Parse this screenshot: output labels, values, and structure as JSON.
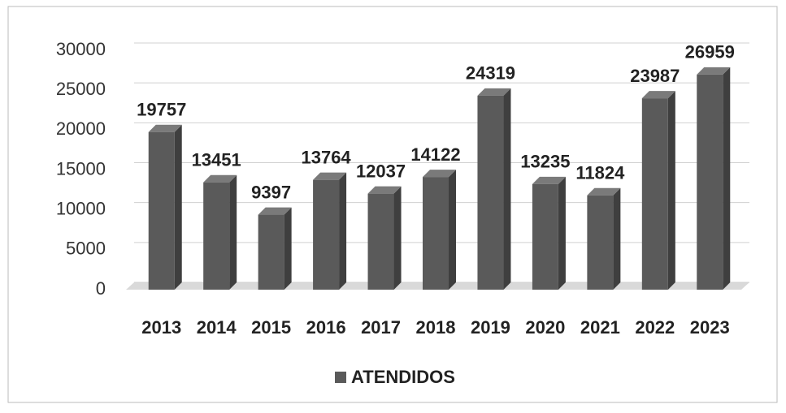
{
  "chart_data": {
    "type": "bar",
    "categories": [
      "2013",
      "2014",
      "2015",
      "2016",
      "2017",
      "2018",
      "2019",
      "2020",
      "2021",
      "2022",
      "2023"
    ],
    "series": [
      {
        "name": "ATENDIDOS",
        "color": "#5a5a5a",
        "values": [
          19757,
          13451,
          9397,
          13764,
          12037,
          14122,
          24319,
          13235,
          11824,
          23987,
          26959
        ]
      }
    ],
    "ylim": [
      0,
      30000
    ],
    "yticks": [
      0,
      5000,
      10000,
      15000,
      20000,
      25000,
      30000
    ],
    "grid": true,
    "legend": "bottom"
  }
}
